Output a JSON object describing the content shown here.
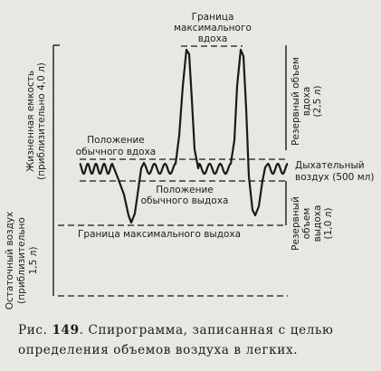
{
  "diagram": {
    "labels": {
      "top_line_1": "Граница",
      "top_line_2": "максимального",
      "top_line_3": "вдоха",
      "normal_inhale_1": "Положение",
      "normal_inhale_2": "обычного вдоха",
      "normal_exhale_1": "Положение",
      "normal_exhale_2": "обычного выдоха",
      "max_exhale": "Граница максимального выдоха",
      "vital_capacity_1": "Жизненная емкость",
      "vital_capacity_2": "(приблизительно 4,0 л)",
      "residual_1": "Остаточный воздух",
      "residual_2": "(приблизительно",
      "residual_3": "1,5 л)",
      "insp_reserve_1": "Резервный объем",
      "insp_reserve_2": "вдоха",
      "insp_reserve_3": "(2,5 л)",
      "tidal_1": "Дыхательный",
      "tidal_2": "воздух (500 мл)",
      "exp_reserve_1": "Резервный",
      "exp_reserve_2": "объем",
      "exp_reserve_3": "выдоха",
      "exp_reserve_4": "(1,0 л)"
    }
  },
  "caption": {
    "fig_prefix": "Рис. ",
    "fig_number": "149",
    "fig_text": ". Спирограмма, записанная с целью определения объемов воздуха в легких."
  }
}
